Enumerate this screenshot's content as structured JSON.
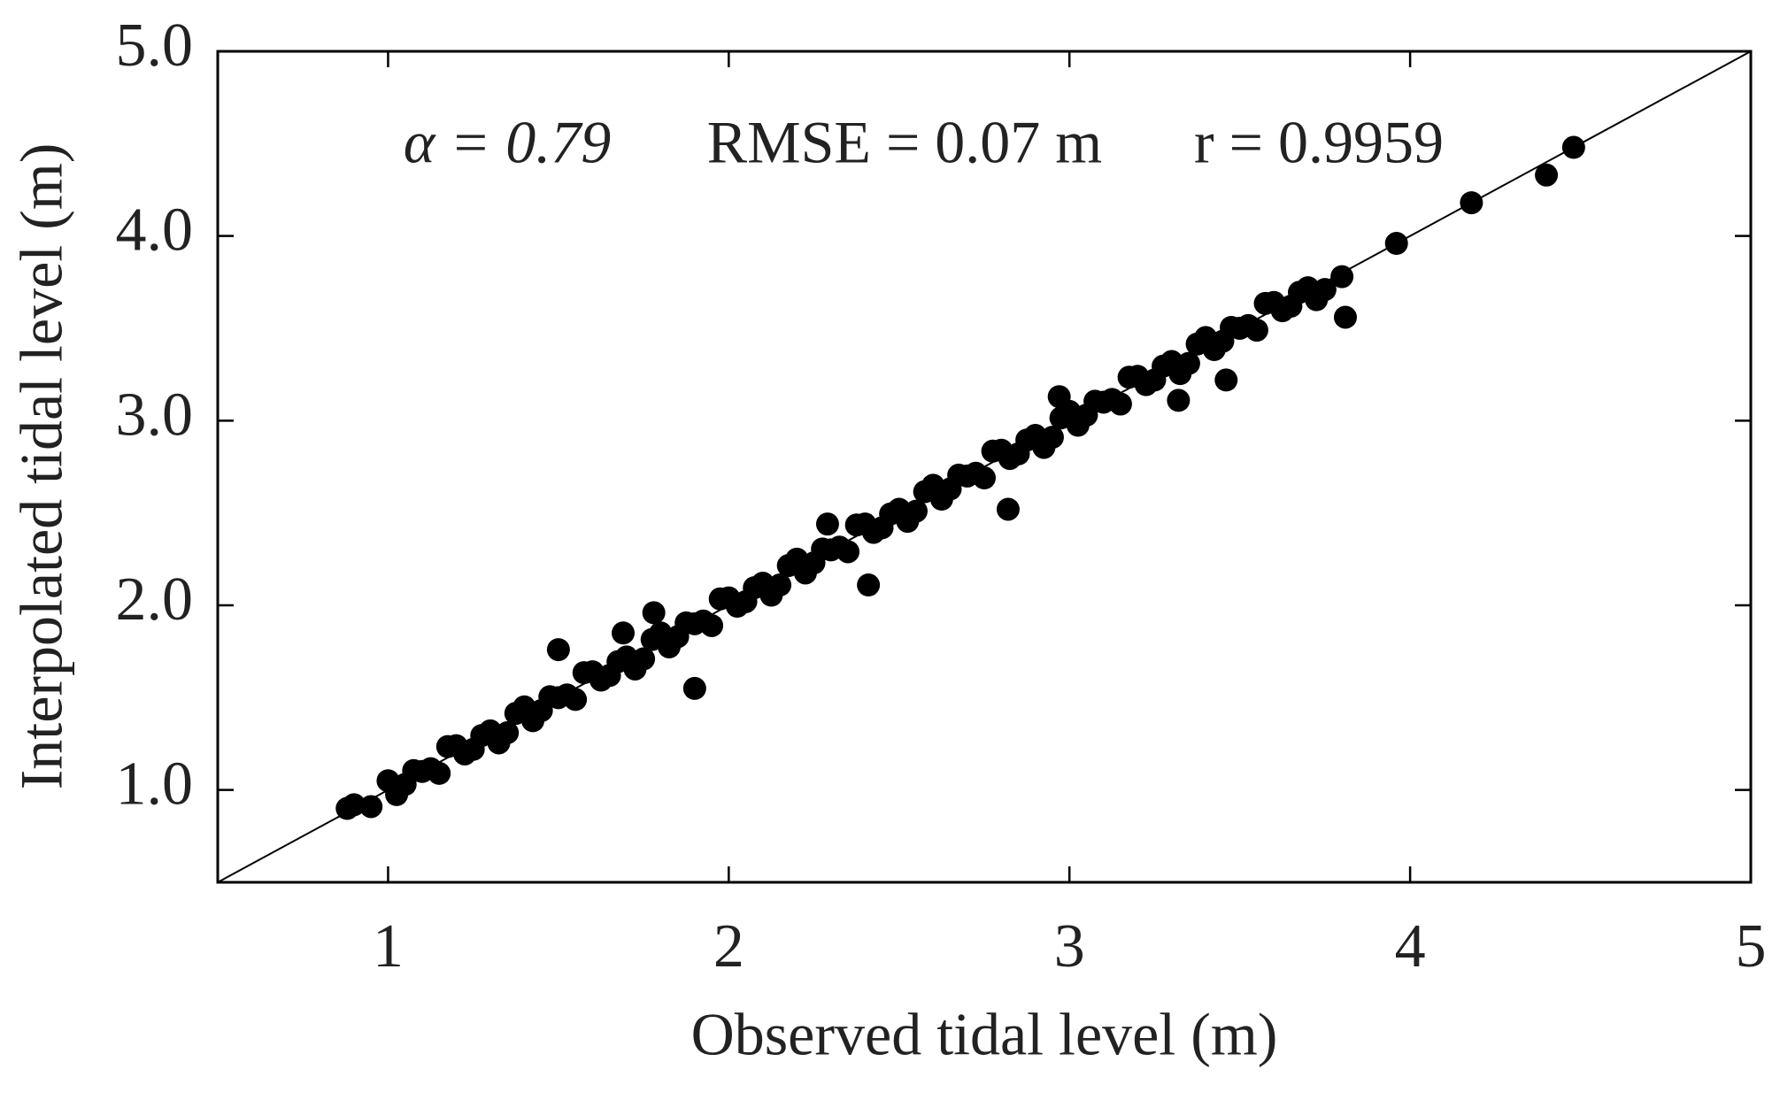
{
  "chart_data": {
    "type": "scatter",
    "xlabel": "Observed tidal level (m)",
    "ylabel": "Interpolated tidal level (m)",
    "annotations": [
      "α = 0.79",
      "RMSE = 0.07 m",
      "r = 0.9959"
    ],
    "xlim": [
      0.5,
      5
    ],
    "ylim": [
      0.5,
      5
    ],
    "xticks": [
      1,
      2,
      3,
      4,
      5
    ],
    "yticks": [
      {
        "value": 1,
        "label": "1.0"
      },
      {
        "value": 2,
        "label": "2.0"
      },
      {
        "value": 3,
        "label": "3.0"
      },
      {
        "value": 4,
        "label": "4.0"
      },
      {
        "value": 5,
        "label": "5.0"
      }
    ],
    "color": "#000000",
    "x": [
      0.9,
      0.95,
      1.0,
      1.05,
      1.1,
      1.15,
      1.2,
      1.25,
      1.3,
      1.35,
      1.4,
      1.45,
      1.5,
      1.55,
      1.6,
      1.65,
      1.7,
      1.75,
      1.8,
      1.85,
      1.9,
      1.95,
      2.0,
      2.05,
      2.1,
      2.15,
      2.2,
      2.25,
      2.3,
      2.35,
      2.4,
      2.45,
      2.5,
      2.55,
      2.6,
      2.65,
      2.7,
      2.75,
      2.8,
      2.85,
      2.9,
      2.95,
      3.0,
      3.05,
      3.1,
      3.15,
      3.2,
      3.25,
      3.3,
      3.35,
      3.4,
      3.45,
      3.5,
      3.55,
      3.6,
      3.65,
      3.7,
      3.75,
      3.8,
      1.025,
      1.075,
      1.125,
      1.175,
      1.225,
      1.275,
      1.325,
      1.375,
      1.425,
      1.475,
      1.525,
      1.575,
      1.625,
      1.675,
      1.725,
      1.775,
      1.825,
      1.875,
      1.925,
      1.975,
      2.025,
      2.075,
      2.125,
      2.175,
      2.225,
      2.275,
      2.325,
      2.375,
      2.425,
      2.475,
      2.525,
      2.575,
      2.625,
      2.675,
      2.725,
      2.775,
      2.825,
      2.875,
      2.925,
      2.975,
      3.025,
      3.075,
      3.125,
      3.175,
      3.225,
      3.275,
      3.325,
      3.375,
      3.425,
      3.475,
      3.525,
      3.575,
      3.625,
      3.675,
      3.725,
      0.88,
      1.5,
      1.9,
      1.69,
      1.78,
      2.29,
      2.41,
      2.82,
      2.97,
      3.32,
      3.46,
      3.81,
      3.96,
      4.18,
      4.4,
      4.48
    ],
    "y": [
      0.92,
      0.91,
      1.05,
      1.03,
      1.1,
      1.09,
      1.24,
      1.22,
      1.32,
      1.31,
      1.45,
      1.43,
      1.5,
      1.49,
      1.64,
      1.62,
      1.72,
      1.71,
      1.85,
      1.83,
      1.9,
      1.89,
      2.04,
      2.02,
      2.12,
      2.11,
      2.25,
      2.23,
      2.3,
      2.29,
      2.44,
      2.42,
      2.52,
      2.51,
      2.65,
      2.63,
      2.7,
      2.69,
      2.84,
      2.82,
      2.92,
      2.91,
      3.05,
      3.03,
      3.1,
      3.09,
      3.24,
      3.22,
      3.32,
      3.31,
      3.45,
      3.43,
      3.5,
      3.49,
      3.64,
      3.62,
      3.72,
      3.71,
      3.78,
      0.975,
      1.105,
      1.115,
      1.235,
      1.195,
      1.295,
      1.255,
      1.415,
      1.375,
      1.505,
      1.515,
      1.635,
      1.595,
      1.695,
      1.655,
      1.815,
      1.775,
      1.905,
      1.915,
      2.035,
      1.995,
      2.095,
      2.055,
      2.215,
      2.175,
      2.305,
      2.315,
      2.435,
      2.395,
      2.495,
      2.455,
      2.615,
      2.575,
      2.705,
      2.715,
      2.835,
      2.795,
      2.895,
      2.855,
      3.015,
      2.975,
      3.105,
      3.115,
      3.235,
      3.195,
      3.295,
      3.255,
      3.415,
      3.385,
      3.505,
      3.515,
      3.635,
      3.595,
      3.695,
      3.655,
      0.9,
      1.76,
      1.55,
      1.85,
      1.96,
      2.44,
      2.11,
      2.52,
      3.13,
      3.11,
      3.22,
      3.56,
      3.96,
      4.18,
      4.33,
      4.48
    ]
  }
}
